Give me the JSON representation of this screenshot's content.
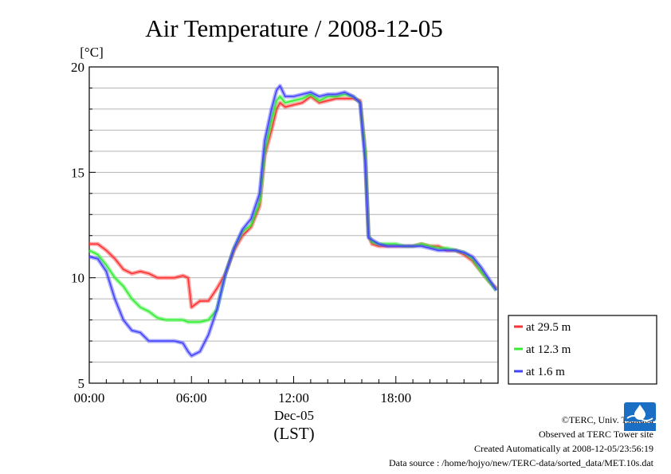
{
  "chart_data": {
    "type": "line",
    "title": "Air Temperature / 2008-12-05",
    "ylabel": "[°C]",
    "xlabel_date": "Dec-05",
    "xlabel": "(LST)",
    "x_unit": "hour of day (LST)",
    "xlim": [
      0,
      24
    ],
    "ylim": [
      5,
      20
    ],
    "yticks": [
      {
        "v": 5,
        "label": "5"
      },
      {
        "v": 10,
        "label": "10"
      },
      {
        "v": 15,
        "label": "15"
      },
      {
        "v": 20,
        "label": "20"
      }
    ],
    "xticks": [
      {
        "v": 0,
        "label": "00:00"
      },
      {
        "v": 6,
        "label": "06:00"
      },
      {
        "v": 12,
        "label": "12:00"
      },
      {
        "v": 18,
        "label": "18:00"
      }
    ],
    "grid": "horizontal at every 1 °C",
    "legend_position": "right-bottom",
    "x": [
      0,
      0.5,
      1,
      1.5,
      2,
      2.5,
      3,
      3.5,
      4,
      4.5,
      5,
      5.5,
      5.8,
      6,
      6.5,
      7,
      7.5,
      8,
      8.5,
      9,
      9.5,
      10,
      10.3,
      10.7,
      11,
      11.2,
      11.5,
      12,
      12.5,
      13,
      13.5,
      14,
      14.5,
      15,
      15.5,
      15.9,
      16.2,
      16.4,
      16.6,
      17,
      17.5,
      18,
      18.5,
      19,
      19.5,
      20,
      20.5,
      21,
      21.5,
      22,
      22.5,
      23,
      23.5,
      23.9
    ],
    "series": [
      {
        "name": "at 29.5 m",
        "color": "#ff3333",
        "values": [
          11.6,
          11.6,
          11.3,
          10.9,
          10.4,
          10.2,
          10.3,
          10.2,
          10.0,
          10.0,
          10.0,
          10.1,
          10.0,
          8.6,
          8.9,
          8.9,
          9.5,
          10.2,
          11.3,
          12.0,
          12.4,
          13.4,
          15.8,
          17.0,
          18.0,
          18.3,
          18.1,
          18.2,
          18.3,
          18.6,
          18.3,
          18.4,
          18.5,
          18.5,
          18.5,
          18.4,
          16.0,
          12.0,
          11.6,
          11.5,
          11.5,
          11.5,
          11.5,
          11.5,
          11.6,
          11.5,
          11.5,
          11.3,
          11.3,
          11.1,
          10.8,
          10.3,
          9.8,
          9.5
        ]
      },
      {
        "name": "at 12.3 m",
        "color": "#33ee33",
        "values": [
          11.3,
          11.1,
          10.6,
          10.0,
          9.6,
          9.0,
          8.6,
          8.4,
          8.1,
          8.0,
          8.0,
          8.0,
          7.9,
          7.9,
          7.9,
          8.0,
          8.5,
          10.2,
          11.4,
          12.2,
          12.5,
          13.6,
          16.0,
          17.5,
          18.4,
          18.6,
          18.3,
          18.4,
          18.5,
          18.7,
          18.4,
          18.6,
          18.6,
          18.7,
          18.6,
          18.3,
          16.0,
          12.0,
          11.7,
          11.6,
          11.6,
          11.6,
          11.5,
          11.5,
          11.6,
          11.5,
          11.4,
          11.4,
          11.3,
          11.2,
          10.9,
          10.3,
          9.8,
          9.4
        ]
      },
      {
        "name": "at 1.6 m",
        "color": "#4444ff",
        "values": [
          11.0,
          10.9,
          10.3,
          9.0,
          8.0,
          7.5,
          7.4,
          7.0,
          7.0,
          7.0,
          7.0,
          6.9,
          6.5,
          6.3,
          6.5,
          7.3,
          8.5,
          10.2,
          11.4,
          12.3,
          12.8,
          14.0,
          16.5,
          18.0,
          18.9,
          19.1,
          18.6,
          18.6,
          18.7,
          18.8,
          18.6,
          18.7,
          18.7,
          18.8,
          18.6,
          18.3,
          15.5,
          11.9,
          11.8,
          11.6,
          11.5,
          11.5,
          11.5,
          11.5,
          11.5,
          11.4,
          11.3,
          11.3,
          11.3,
          11.2,
          11.0,
          10.5,
          9.9,
          9.4
        ]
      }
    ]
  },
  "footer": {
    "copyright": "©TERC, Univ. Tsukuba",
    "observed": "Observed at TERC Tower site",
    "created": "Created Automatically at 2008-12-05/23:56:19",
    "source": "Data source : /home/hojyo/new/TERC-data/sorted_data/MET.10s.dat"
  },
  "logo_name": "terc-logo"
}
